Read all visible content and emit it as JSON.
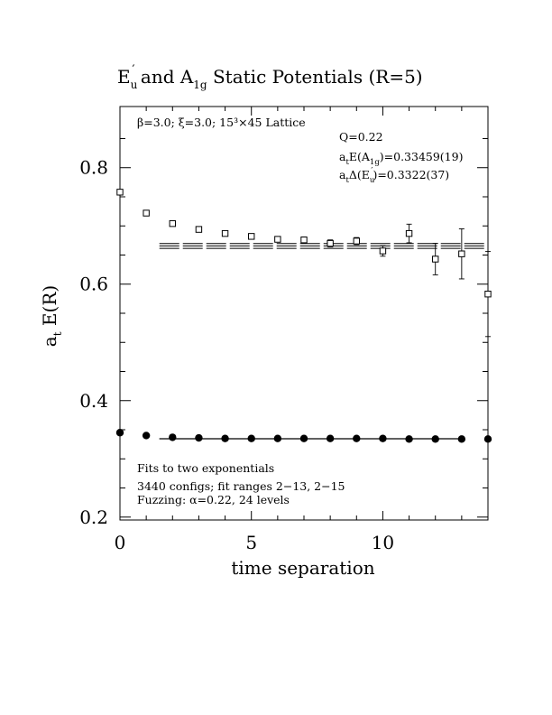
{
  "chart_data": {
    "type": "scatter",
    "title_parts": {
      "p1": "E",
      "p1_sub": "u",
      "p1_prime": "′",
      "p2": "  and A",
      "p2_sub": "1g",
      "p3": " Static Potentials (R=5)"
    },
    "xlabel": "time separation",
    "ylabel_parts": {
      "a": "a",
      "sub": "t",
      "rest": " E(R)"
    },
    "xlim": [
      0,
      14
    ],
    "ylim": [
      0.195,
      0.905
    ],
    "x_ticks": [
      0,
      5,
      10
    ],
    "y_ticks": [
      0.2,
      0.4,
      0.6,
      0.8
    ],
    "x_ticks_minor": [
      1,
      2,
      3,
      4,
      6,
      7,
      8,
      9,
      11,
      12,
      13
    ],
    "y_ticks_minor": [
      0.25,
      0.3,
      0.35,
      0.45,
      0.5,
      0.55,
      0.65,
      0.7,
      0.75,
      0.85
    ],
    "y_tick_labels": [
      "0.2",
      "0.4",
      "0.6",
      "0.8"
    ],
    "x_tick_labels": [
      "0",
      "5",
      "10"
    ],
    "grid": false,
    "series": [
      {
        "marker": "open-square",
        "points": [
          {
            "x": 0,
            "y": 0.758,
            "err": 0.004
          },
          {
            "x": 1,
            "y": 0.722,
            "err": 0.004
          },
          {
            "x": 2,
            "y": 0.704,
            "err": 0.004
          },
          {
            "x": 3,
            "y": 0.694,
            "err": 0.004
          },
          {
            "x": 4,
            "y": 0.687,
            "err": 0.004
          },
          {
            "x": 5,
            "y": 0.682,
            "err": 0.004
          },
          {
            "x": 6,
            "y": 0.677,
            "err": 0.004
          },
          {
            "x": 7,
            "y": 0.676,
            "err": 0.005
          },
          {
            "x": 8,
            "y": 0.67,
            "err": 0.006
          },
          {
            "x": 9,
            "y": 0.674,
            "err": 0.006
          },
          {
            "x": 10,
            "y": 0.657,
            "err": 0.009
          },
          {
            "x": 11,
            "y": 0.687,
            "err": 0.016
          },
          {
            "x": 12,
            "y": 0.643,
            "err": 0.027
          },
          {
            "x": 13,
            "y": 0.652,
            "err": 0.043
          },
          {
            "x": 14,
            "y": 0.583,
            "err": 0.073
          }
        ]
      },
      {
        "marker": "filled-circle",
        "points": [
          {
            "x": 0,
            "y": 0.345
          },
          {
            "x": 1,
            "y": 0.34
          },
          {
            "x": 2,
            "y": 0.337
          },
          {
            "x": 3,
            "y": 0.336
          },
          {
            "x": 4,
            "y": 0.335
          },
          {
            "x": 5,
            "y": 0.335
          },
          {
            "x": 6,
            "y": 0.335
          },
          {
            "x": 7,
            "y": 0.335
          },
          {
            "x": 8,
            "y": 0.335
          },
          {
            "x": 9,
            "y": 0.335
          },
          {
            "x": 10,
            "y": 0.335
          },
          {
            "x": 11,
            "y": 0.334
          },
          {
            "x": 12,
            "y": 0.334
          },
          {
            "x": 13,
            "y": 0.334
          },
          {
            "x": 14,
            "y": 0.334
          }
        ]
      }
    ],
    "fit_lines": [
      {
        "x_start": 1.5,
        "x_end": 14,
        "levels": [
          0.6697,
          0.6656,
          0.6615
        ],
        "style": "long-dash"
      },
      {
        "x_start": 1.5,
        "x_end": 13,
        "levels": [
          0.3348,
          0.3344
        ],
        "style": "solid"
      }
    ],
    "annotations": {
      "lattice": "β=3.0; ξ=3.0; 15³×45 Lattice",
      "q": "Q=0.22",
      "energy_a": {
        "pre": "a",
        "sub1": "t",
        "mid": "E(A",
        "sub2": "1g",
        "post": ")=0.33459(19)"
      },
      "energy_b": {
        "pre": "a",
        "sub1": "t",
        "mid": "Δ(E",
        "sub2": "u",
        "prime": "′",
        "post": ")=0.3322(37)"
      },
      "fits": "Fits to two exponentials",
      "configs": "3440 configs; fit ranges 2−13, 2−15",
      "fuzzing": "Fuzzing: α=0.22, 24 levels"
    }
  }
}
